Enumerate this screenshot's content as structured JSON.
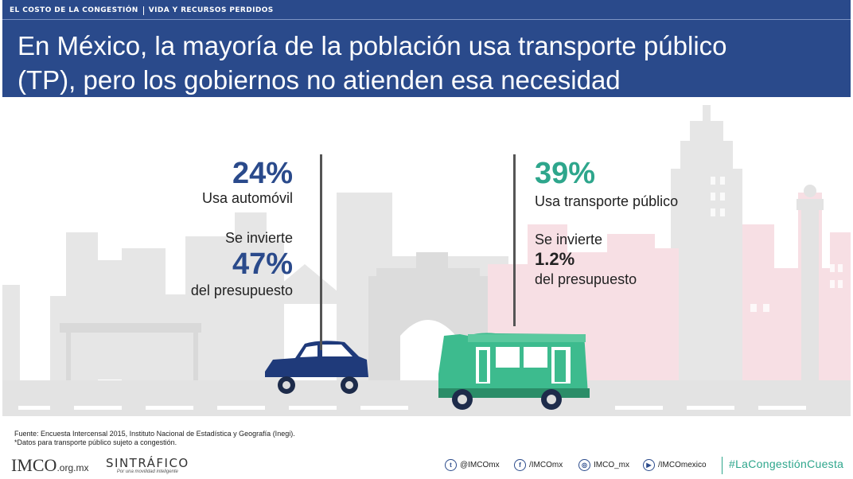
{
  "header": {
    "section": "EL COSTO DE LA CONGESTIÓN",
    "subsection": "VIDA Y RECURSOS PERDIDOS",
    "title_line1": "En México, la mayoría de la población usa transporte público",
    "title_line2": "(TP), pero los gobiernos no atienden esa necesidad"
  },
  "left_stats": {
    "usage_pct": "24%",
    "usage_label": "Usa automóvil",
    "invest_intro": "Se invierte",
    "invest_pct": "47%",
    "invest_label": "del presupuesto"
  },
  "right_stats": {
    "usage_pct": "39%",
    "usage_label": "Usa transporte público",
    "invest_intro": "Se invierte",
    "invest_pct": "1.2%",
    "invest_label": "del presupuesto"
  },
  "footer": {
    "source": "Fuente: Encuesta Intercensal 2015, Instituto Nacional de Estadística y Geografía (Inegi).",
    "note": "*Datos para transporte público sujeto a congestión."
  },
  "bottom": {
    "imco_logo": "IMCO",
    "imco_domain": ".org.mx",
    "sintrafico_logo": "SINTRÁFICO",
    "sintrafico_tagline": "Por una movilidad inteligente",
    "social": [
      {
        "icon": "twitter-icon",
        "glyph": "t",
        "handle": "@IMCOmx"
      },
      {
        "icon": "facebook-icon",
        "glyph": "f",
        "handle": "/IMCOmx"
      },
      {
        "icon": "instagram-icon",
        "glyph": "◎",
        "handle": "IMCO_mx"
      },
      {
        "icon": "youtube-icon",
        "glyph": "▶",
        "handle": "/IMCOmexico"
      }
    ],
    "hashtag": "#LaCongestiónCuesta"
  },
  "colors": {
    "header_bg": "#2a4a8b",
    "car_blue": "#1f3a7a",
    "bus_green": "#3dbb8e",
    "accent_green": "#2ea68c",
    "skyline_gray": "#e4e4e4",
    "skyline_pink": "#f6dde2"
  }
}
